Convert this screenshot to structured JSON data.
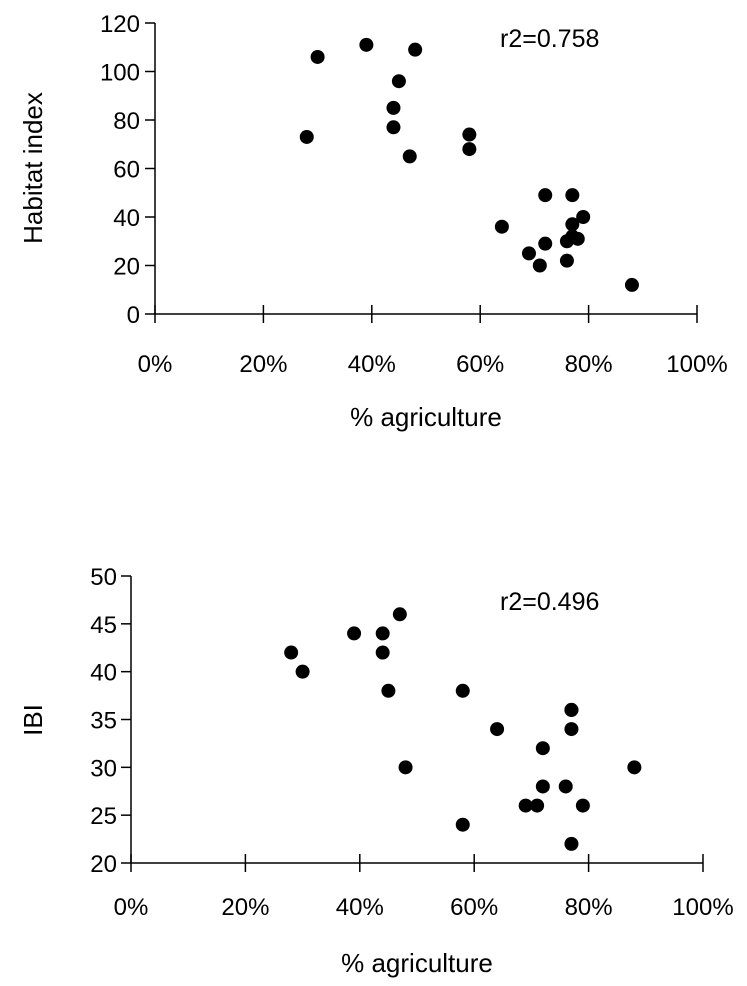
{
  "chart_data": [
    {
      "type": "scatter",
      "title": "",
      "xlabel": "% agriculture",
      "ylabel": "Habitat index",
      "xlim": [
        0,
        100
      ],
      "ylim": [
        0,
        120
      ],
      "xticks": [
        "0%",
        "20%",
        "40%",
        "60%",
        "80%",
        "100%"
      ],
      "yticks": [
        "0",
        "20",
        "40",
        "60",
        "80",
        "100",
        "120"
      ],
      "annotation": "r2=0.758",
      "grid": false,
      "marker_color": "#000000",
      "x": [
        28,
        30,
        39,
        44,
        44,
        45,
        47,
        48,
        58,
        58,
        64,
        69,
        71,
        72,
        72,
        76,
        76,
        77,
        77,
        77,
        78,
        79,
        88
      ],
      "y": [
        73,
        106,
        111,
        85,
        77,
        96,
        65,
        109,
        74,
        68,
        36,
        25,
        20,
        29,
        49,
        22,
        30,
        37,
        49,
        32,
        31,
        40,
        12
      ]
    },
    {
      "type": "scatter",
      "title": "",
      "xlabel": "% agriculture",
      "ylabel": "IBI",
      "xlim": [
        0,
        100
      ],
      "ylim": [
        20,
        50
      ],
      "xticks": [
        "0%",
        "20%",
        "40%",
        "60%",
        "80%",
        "100%"
      ],
      "yticks": [
        "20",
        "25",
        "30",
        "35",
        "40",
        "45",
        "50"
      ],
      "annotation": "r2=0.496",
      "grid": false,
      "marker_color": "#000000",
      "x": [
        28,
        30,
        39,
        44,
        44,
        45,
        47,
        48,
        58,
        58,
        64,
        69,
        71,
        72,
        72,
        76,
        77,
        77,
        77,
        77,
        79,
        88
      ],
      "y": [
        42,
        40,
        44,
        44,
        42,
        38,
        46,
        30,
        38,
        24,
        34,
        26,
        26,
        32,
        28,
        28,
        36,
        36,
        34,
        22,
        26,
        30
      ]
    }
  ]
}
